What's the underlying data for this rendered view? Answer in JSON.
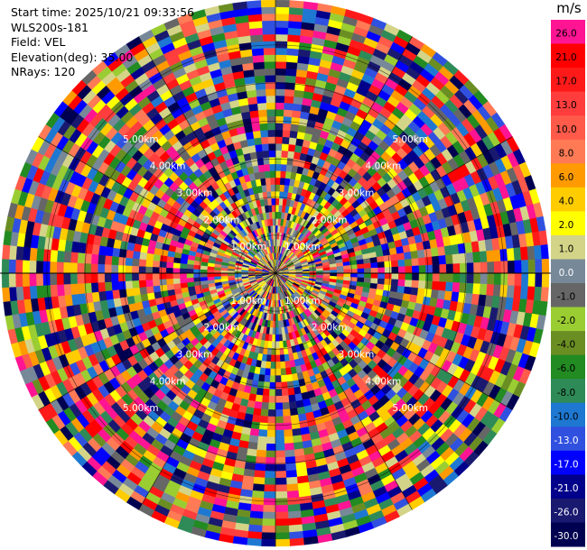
{
  "header": {
    "start_time": "Start time: 2025/10/21 09:33:56",
    "station": "WLS200s-181",
    "field": "Field: VEL",
    "elevation": "Elevation(deg): 35.00",
    "nrays": "NRays: 120"
  },
  "range_rings": {
    "labels": [
      "1.00km",
      "2.00km",
      "3.00km",
      "4.00km",
      "5.00km"
    ]
  },
  "colorbar": {
    "unit": "m/s",
    "ticks": [
      "26.0",
      "21.0",
      "17.0",
      "13.0",
      "10.0",
      "8.0",
      "6.0",
      "4.0",
      "2.0",
      "1.0",
      "0.0",
      "-1.0",
      "-2.0",
      "-4.0",
      "-6.0",
      "-8.0",
      "-10.0",
      "-13.0",
      "-17.0",
      "-21.0",
      "-26.0",
      "-30.0"
    ],
    "colors": [
      "#ff1493",
      "#ff0000",
      "#ff1a1a",
      "#ff3d3d",
      "#ff5a4a",
      "#ff7a55",
      "#ff9a00",
      "#ffcc00",
      "#ffff00",
      "#d4d488",
      "#778899",
      "#666666",
      "#9acd32",
      "#6b8e23",
      "#228b22",
      "#2e8b57",
      "#1e78d2",
      "#3050e0",
      "#0000ff",
      "#00008b",
      "#191970",
      "#000050"
    ]
  },
  "ppi": {
    "nrays": 120,
    "max_range_km": 6.0,
    "range_step_km": 0.15
  }
}
